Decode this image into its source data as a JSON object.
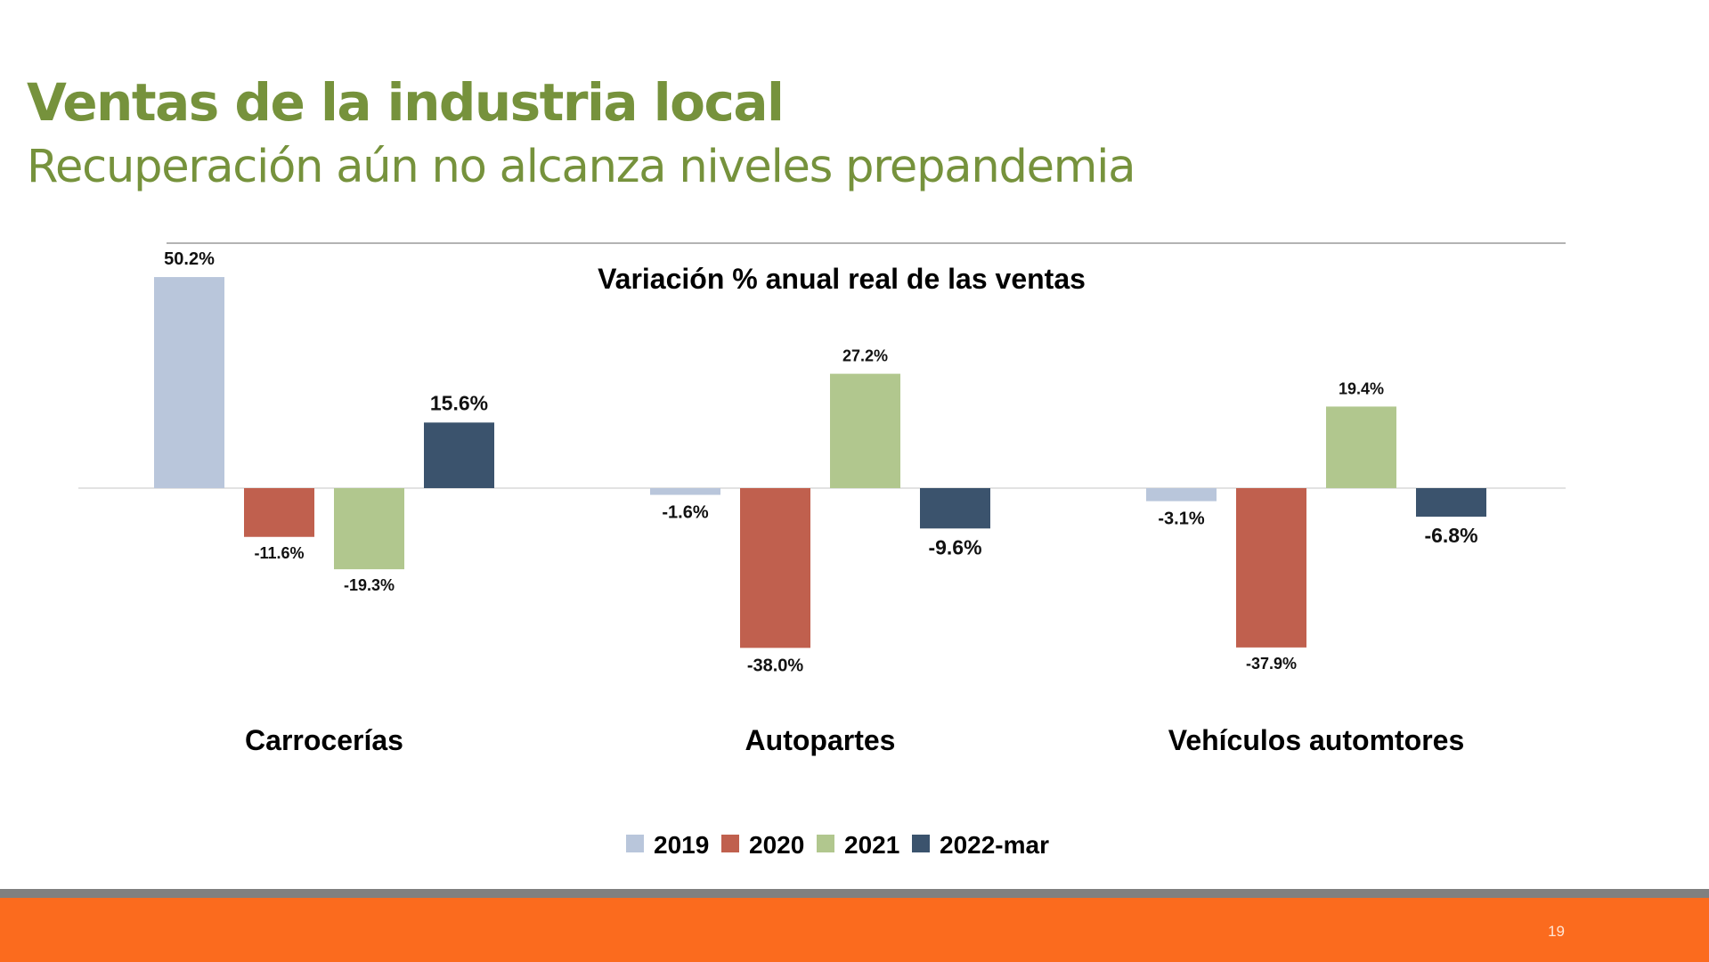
{
  "slide": {
    "title": "Ventas de la industria local",
    "subtitle": "Recuperación aún no alcanza niveles prepandemia",
    "page_number": "19"
  },
  "colors": {
    "title": "#76923c",
    "band_gray": "#808080",
    "band_orange": "#fb6b1e"
  },
  "chart_data": {
    "type": "bar",
    "title": "Variación % anual real de las ventas",
    "categories": [
      "Carrocerías",
      "Autopartes",
      "Vehículos automtores"
    ],
    "series": [
      {
        "name": "2019",
        "color": "#b9c6db",
        "values": [
          50.2,
          -1.6,
          -3.1
        ]
      },
      {
        "name": "2020",
        "color": "#c0604e",
        "values": [
          -11.6,
          -38.0,
          -37.9
        ]
      },
      {
        "name": "2021",
        "color": "#b1c78e",
        "values": [
          -19.3,
          27.2,
          19.4
        ]
      },
      {
        "name": "2022-mar",
        "color": "#3b536d",
        "values": [
          15.6,
          -9.6,
          -6.8
        ]
      }
    ],
    "data_labels": [
      [
        "50.2%",
        "-1.6%",
        "-3.1%"
      ],
      [
        "-11.6%",
        "-38.0%",
        "-37.9%"
      ],
      [
        "-19.3%",
        "27.2%",
        "19.4%"
      ],
      [
        "15.6%",
        "-9.6%",
        "-6.8%"
      ]
    ],
    "legend_position": "bottom",
    "grid": false
  }
}
